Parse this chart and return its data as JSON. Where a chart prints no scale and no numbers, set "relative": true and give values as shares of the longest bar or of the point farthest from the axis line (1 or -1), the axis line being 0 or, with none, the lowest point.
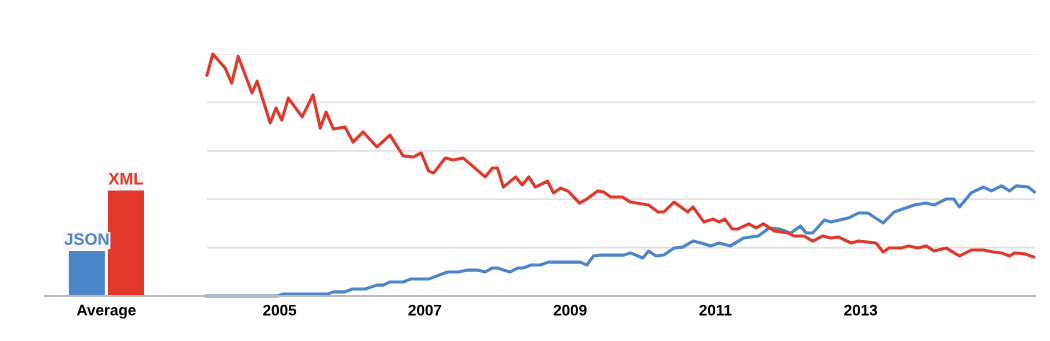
{
  "chart_data": [
    {
      "type": "bar",
      "relative": true,
      "categories": [
        "Average"
      ],
      "legend": false,
      "grid": false,
      "tick_labels": "x",
      "series": [
        {
          "name": "JSON",
          "color": "#4a86c8",
          "values": [
            0.43
          ]
        },
        {
          "name": "XML",
          "color": "#e0392b",
          "values": [
            1
          ]
        }
      ]
    },
    {
      "type": "line",
      "relative": true,
      "legend": false,
      "grid": "y",
      "tick_labels": "x",
      "marker": "none",
      "line_style": "solid",
      "xlim": [
        2004,
        2015.4
      ],
      "xticks": [
        2005,
        2007,
        2009,
        2011,
        2013
      ],
      "series": [
        {
          "color": "#4a86c8",
          "x": [
            2004.0,
            2004.97,
            2005.05,
            2005.66,
            2005.74,
            2005.9,
            2006.0,
            2006.18,
            2006.34,
            2006.43,
            2006.52,
            2006.7,
            2006.8,
            2007.05,
            2007.31,
            2007.46,
            2007.59,
            2007.72,
            2007.83,
            2007.93,
            2008.0,
            2008.17,
            2008.28,
            2008.36,
            2008.46,
            2008.59,
            2008.7,
            2009.14,
            2009.23,
            2009.32,
            2009.42,
            2009.74,
            2009.83,
            2010.0,
            2010.08,
            2010.18,
            2010.29,
            2010.43,
            2010.55,
            2010.69,
            2010.8,
            2010.94,
            2011.05,
            2011.21,
            2011.39,
            2011.59,
            2011.74,
            2011.88,
            2012.04,
            2012.17,
            2012.25,
            2012.34,
            2012.5,
            2012.59,
            2012.83,
            2012.97,
            2013.1,
            2013.31,
            2013.46,
            2013.74,
            2013.9,
            2014.01,
            2014.18,
            2014.28,
            2014.36,
            2014.52,
            2014.69,
            2014.8,
            2014.94,
            2015.05,
            2015.14,
            2015.31,
            2015.39
          ],
          "values": [
            0,
            0,
            0.008,
            0.008,
            0.017,
            0.017,
            0.029,
            0.029,
            0.045,
            0.045,
            0.058,
            0.058,
            0.07,
            0.07,
            0.099,
            0.099,
            0.107,
            0.107,
            0.099,
            0.116,
            0.116,
            0.099,
            0.116,
            0.116,
            0.128,
            0.128,
            0.14,
            0.14,
            0.128,
            0.165,
            0.169,
            0.169,
            0.178,
            0.157,
            0.186,
            0.165,
            0.169,
            0.198,
            0.202,
            0.227,
            0.219,
            0.207,
            0.219,
            0.207,
            0.24,
            0.248,
            0.281,
            0.277,
            0.26,
            0.289,
            0.26,
            0.26,
            0.314,
            0.306,
            0.322,
            0.343,
            0.343,
            0.302,
            0.347,
            0.376,
            0.384,
            0.376,
            0.401,
            0.401,
            0.368,
            0.426,
            0.45,
            0.434,
            0.455,
            0.434,
            0.455,
            0.45,
            0.43
          ]
        },
        {
          "color": "#e0392b",
          "x": [
            2004.0,
            2004.08,
            2004.25,
            2004.34,
            2004.43,
            2004.62,
            2004.69,
            2004.87,
            2004.95,
            2005.03,
            2005.12,
            2005.31,
            2005.46,
            2005.56,
            2005.64,
            2005.74,
            2005.9,
            2006.01,
            2006.15,
            2006.34,
            2006.52,
            2006.7,
            2006.84,
            2006.95,
            2007.05,
            2007.12,
            2007.28,
            2007.39,
            2007.53,
            2007.83,
            2007.93,
            2008.0,
            2008.08,
            2008.25,
            2008.34,
            2008.43,
            2008.52,
            2008.69,
            2008.77,
            2008.87,
            2008.97,
            2009.13,
            2009.21,
            2009.38,
            2009.46,
            2009.56,
            2009.72,
            2009.83,
            2010.08,
            2010.21,
            2010.29,
            2010.43,
            2010.62,
            2010.69,
            2010.84,
            2010.97,
            2011.05,
            2011.13,
            2011.23,
            2011.31,
            2011.46,
            2011.56,
            2011.66,
            2011.81,
            2012.0,
            2012.08,
            2012.22,
            2012.34,
            2012.48,
            2012.59,
            2012.69,
            2012.87,
            2012.97,
            2013.21,
            2013.31,
            2013.39,
            2013.56,
            2013.66,
            2013.79,
            2013.9,
            2014.01,
            2014.18,
            2014.36,
            2014.52,
            2014.69,
            2014.83,
            2014.94,
            2015.05,
            2015.12,
            2015.26,
            2015.38
          ],
          "values": [
            0.913,
            1,
            0.942,
            0.88,
            0.99,
            0.839,
            0.888,
            0.715,
            0.777,
            0.727,
            0.818,
            0.74,
            0.831,
            0.694,
            0.76,
            0.69,
            0.698,
            0.636,
            0.678,
            0.616,
            0.665,
            0.579,
            0.574,
            0.591,
            0.517,
            0.508,
            0.57,
            0.562,
            0.57,
            0.492,
            0.529,
            0.529,
            0.45,
            0.492,
            0.459,
            0.492,
            0.45,
            0.475,
            0.426,
            0.446,
            0.434,
            0.384,
            0.397,
            0.434,
            0.43,
            0.409,
            0.409,
            0.388,
            0.376,
            0.347,
            0.347,
            0.388,
            0.347,
            0.368,
            0.306,
            0.318,
            0.306,
            0.318,
            0.277,
            0.277,
            0.298,
            0.281,
            0.298,
            0.269,
            0.26,
            0.248,
            0.248,
            0.227,
            0.248,
            0.24,
            0.244,
            0.219,
            0.227,
            0.219,
            0.182,
            0.198,
            0.198,
            0.207,
            0.198,
            0.207,
            0.186,
            0.198,
            0.165,
            0.19,
            0.19,
            0.182,
            0.178,
            0.165,
            0.178,
            0.174,
            0.161
          ]
        }
      ]
    }
  ]
}
